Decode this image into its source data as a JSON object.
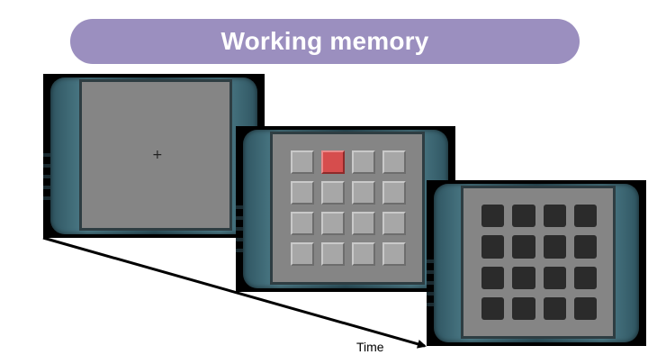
{
  "title": "Working memory",
  "time_label": "Time",
  "fixation_symbol": "+",
  "colors": {
    "banner": "#9b8fbf",
    "screen": "#858585",
    "square_light": "#a7a7a7",
    "square_highlight": "#d64d4d",
    "square_dark": "#2b2b2b"
  },
  "frames": [
    {
      "name": "fixation-frame",
      "content": "fixation"
    },
    {
      "name": "cue-frame",
      "content": "grid",
      "rows": 4,
      "cols": 4,
      "highlighted_cell": [
        0,
        1
      ]
    },
    {
      "name": "response-frame",
      "content": "grid",
      "rows": 4,
      "cols": 4
    }
  ]
}
